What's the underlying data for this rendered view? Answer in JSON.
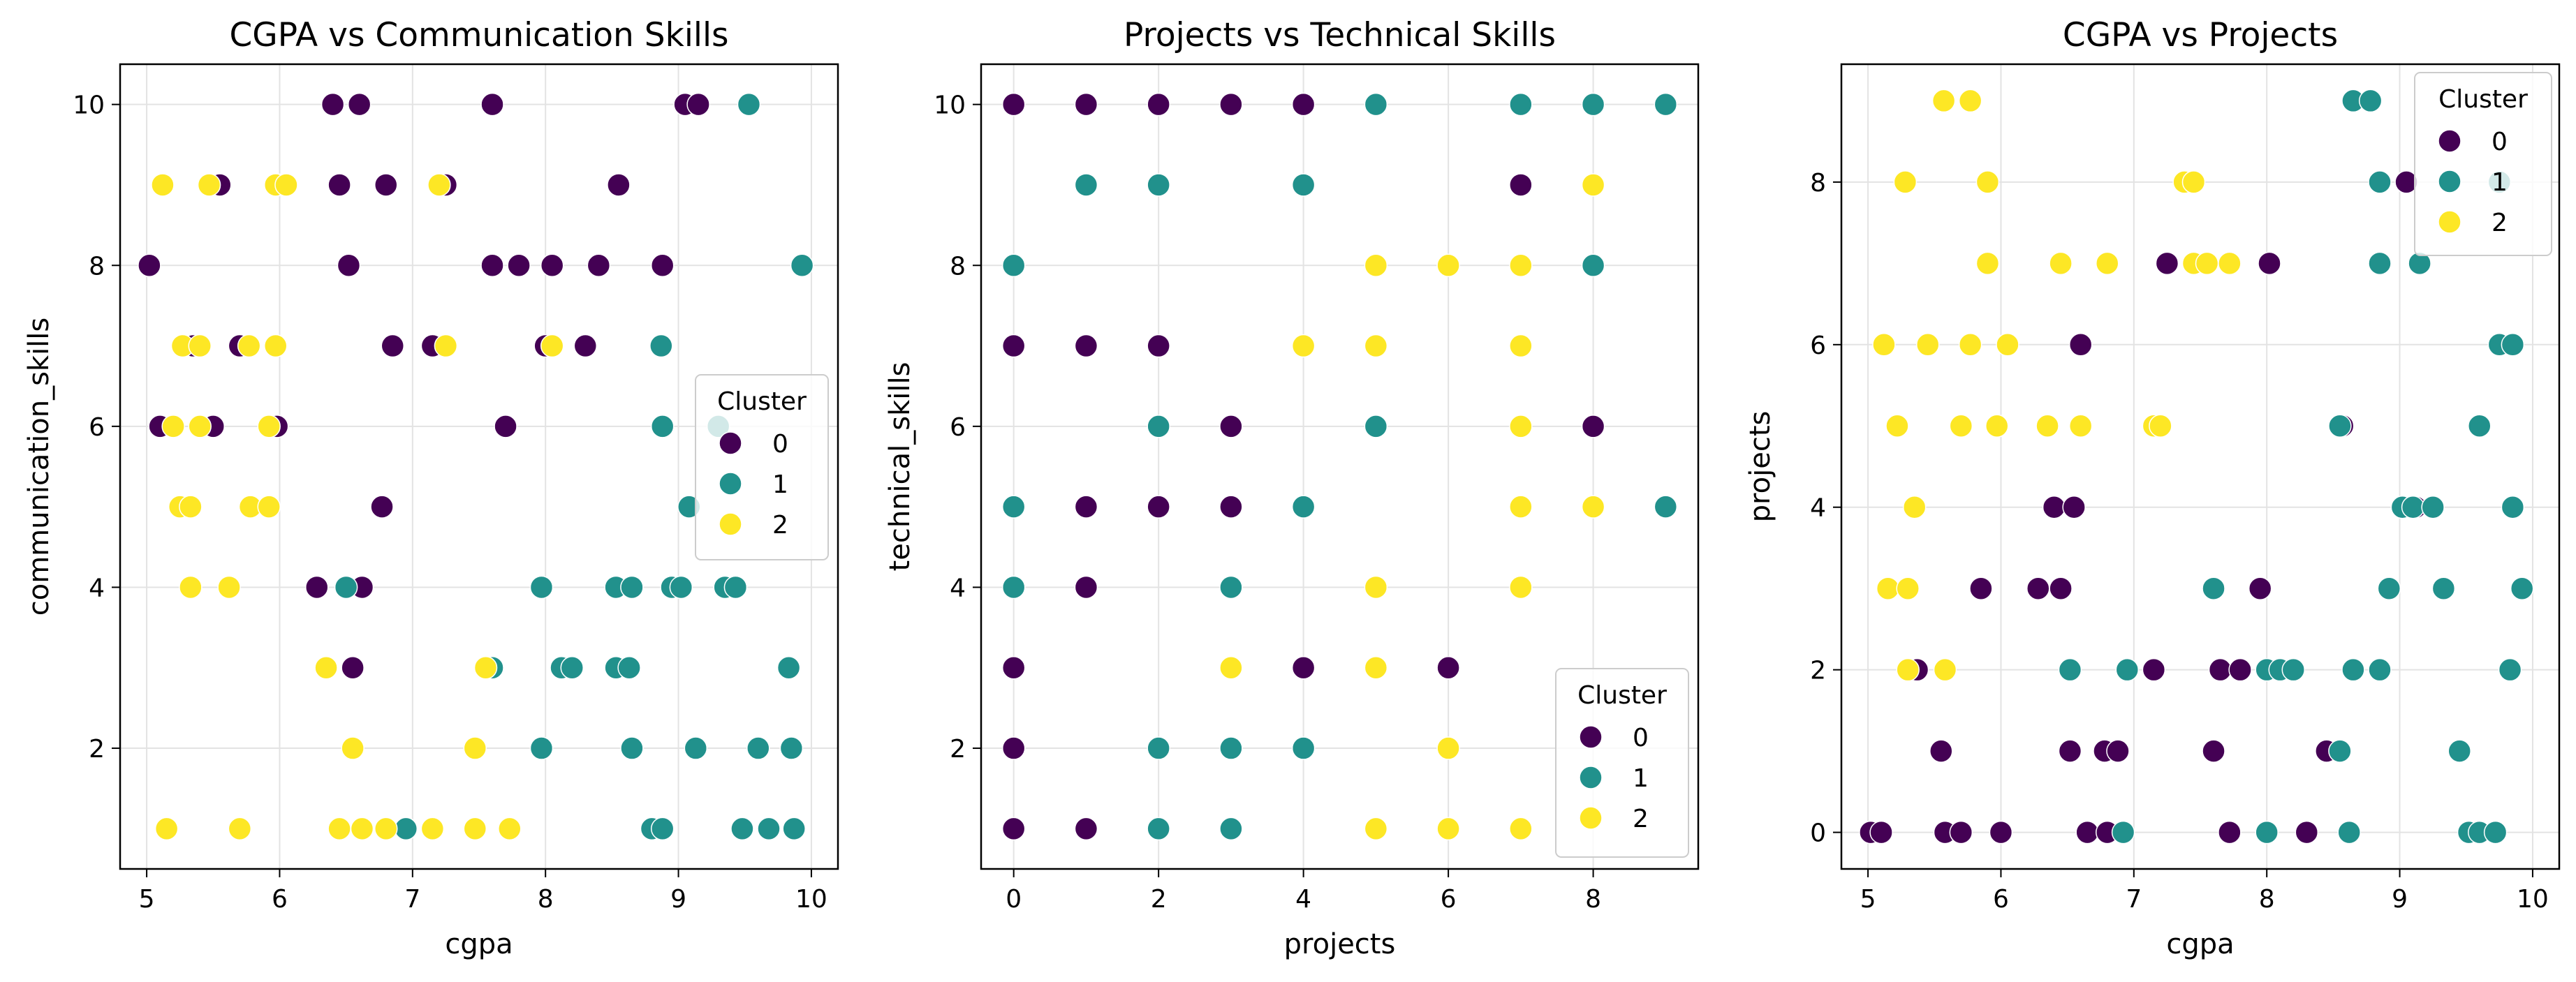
{
  "colors": {
    "cluster_0": "#440154",
    "cluster_1": "#21918c",
    "cluster_2": "#fde725",
    "grid": "#e3e3e3"
  },
  "chart_data": [
    {
      "type": "scatter",
      "title": "CGPA vs Communication Skills",
      "xlabel": "cgpa",
      "ylabel": "communication_skills",
      "xlim": [
        4.8,
        10.2
      ],
      "ylim": [
        0.5,
        10.5
      ],
      "xticks": [
        5,
        6,
        7,
        8,
        9,
        10
      ],
      "yticks": [
        2,
        4,
        6,
        8,
        10
      ],
      "grid": true,
      "legend": {
        "title": "Cluster",
        "placement": "center-right",
        "entries": [
          "0",
          "1",
          "2"
        ]
      },
      "series": [
        {
          "name": "0",
          "color": "#440154",
          "points": [
            [
              5.02,
              8
            ],
            [
              5.1,
              6
            ],
            [
              5.35,
              7
            ],
            [
              5.5,
              6
            ],
            [
              5.55,
              9
            ],
            [
              5.7,
              7
            ],
            [
              5.98,
              6
            ],
            [
              5.98,
              9
            ],
            [
              6.4,
              10
            ],
            [
              6.45,
              9
            ],
            [
              6.52,
              8
            ],
            [
              6.6,
              10
            ],
            [
              6.8,
              9
            ],
            [
              6.85,
              7
            ],
            [
              7.15,
              7
            ],
            [
              7.25,
              9
            ],
            [
              7.6,
              10
            ],
            [
              7.6,
              8
            ],
            [
              7.7,
              6
            ],
            [
              7.8,
              8
            ],
            [
              8.0,
              7
            ],
            [
              8.05,
              8
            ],
            [
              8.3,
              7
            ],
            [
              8.4,
              8
            ],
            [
              8.55,
              9
            ],
            [
              8.88,
              8
            ],
            [
              9.05,
              10
            ],
            [
              9.15,
              10
            ],
            [
              6.28,
              4
            ],
            [
              6.62,
              4
            ],
            [
              6.55,
              3
            ],
            [
              6.77,
              5
            ]
          ]
        },
        {
          "name": "1",
          "color": "#21918c",
          "points": [
            [
              9.53,
              10
            ],
            [
              9.93,
              8
            ],
            [
              8.87,
              7
            ],
            [
              8.88,
              6
            ],
            [
              9.3,
              6
            ],
            [
              9.08,
              5
            ],
            [
              6.5,
              4
            ],
            [
              7.97,
              4
            ],
            [
              8.53,
              4
            ],
            [
              8.65,
              4
            ],
            [
              8.95,
              4
            ],
            [
              9.02,
              4
            ],
            [
              9.35,
              4
            ],
            [
              9.43,
              4
            ],
            [
              7.6,
              3
            ],
            [
              8.12,
              3
            ],
            [
              8.2,
              3
            ],
            [
              8.53,
              3
            ],
            [
              8.63,
              3
            ],
            [
              9.83,
              3
            ],
            [
              6.95,
              1
            ],
            [
              7.97,
              2
            ],
            [
              8.65,
              2
            ],
            [
              9.13,
              2
            ],
            [
              9.6,
              2
            ],
            [
              9.85,
              2
            ],
            [
              8.8,
              1
            ],
            [
              8.88,
              1
            ],
            [
              9.48,
              1
            ],
            [
              9.68,
              1
            ],
            [
              9.87,
              1
            ]
          ]
        },
        {
          "name": "2",
          "color": "#fde725",
          "points": [
            [
              5.12,
              9
            ],
            [
              5.47,
              9
            ],
            [
              5.97,
              9
            ],
            [
              6.05,
              9
            ],
            [
              7.2,
              9
            ],
            [
              5.27,
              7
            ],
            [
              5.4,
              7
            ],
            [
              5.77,
              7
            ],
            [
              5.97,
              7
            ],
            [
              7.25,
              7
            ],
            [
              8.05,
              7
            ],
            [
              5.2,
              6
            ],
            [
              5.4,
              6
            ],
            [
              5.92,
              6
            ],
            [
              5.25,
              5
            ],
            [
              5.33,
              5
            ],
            [
              5.78,
              5
            ],
            [
              5.92,
              5
            ],
            [
              5.33,
              4
            ],
            [
              5.62,
              4
            ],
            [
              6.35,
              3
            ],
            [
              7.55,
              3
            ],
            [
              6.55,
              2
            ],
            [
              7.47,
              2
            ],
            [
              5.15,
              1
            ],
            [
              5.7,
              1
            ],
            [
              6.45,
              1
            ],
            [
              6.62,
              1
            ],
            [
              6.8,
              1
            ],
            [
              7.15,
              1
            ],
            [
              7.47,
              1
            ],
            [
              7.73,
              1
            ]
          ]
        }
      ]
    },
    {
      "type": "scatter",
      "title": "Projects vs Technical Skills",
      "xlabel": "projects",
      "ylabel": "technical_skills",
      "xlim": [
        -0.45,
        9.45
      ],
      "ylim": [
        0.5,
        10.5
      ],
      "xticks": [
        0,
        2,
        4,
        6,
        8
      ],
      "yticks": [
        2,
        4,
        6,
        8,
        10
      ],
      "grid": true,
      "legend": {
        "title": "Cluster",
        "placement": "lower-right",
        "entries": [
          "0",
          "1",
          "2"
        ]
      },
      "series": [
        {
          "name": "0",
          "color": "#440154",
          "points": [
            [
              0,
              10
            ],
            [
              1,
              10
            ],
            [
              2,
              10
            ],
            [
              3,
              10
            ],
            [
              4,
              10
            ],
            [
              7,
              9
            ],
            [
              0,
              7
            ],
            [
              1,
              7
            ],
            [
              2,
              7
            ],
            [
              3,
              6
            ],
            [
              8,
              6
            ],
            [
              1,
              5
            ],
            [
              2,
              5
            ],
            [
              3,
              5
            ],
            [
              1,
              4
            ],
            [
              0,
              3
            ],
            [
              4,
              3
            ],
            [
              6,
              3
            ],
            [
              0,
              2
            ],
            [
              0,
              1
            ],
            [
              1,
              1
            ]
          ]
        },
        {
          "name": "1",
          "color": "#21918c",
          "points": [
            [
              5,
              10
            ],
            [
              7,
              10
            ],
            [
              8,
              10
            ],
            [
              9,
              10
            ],
            [
              1,
              9
            ],
            [
              2,
              9
            ],
            [
              4,
              9
            ],
            [
              0,
              8
            ],
            [
              8,
              8
            ],
            [
              2,
              6
            ],
            [
              5,
              6
            ],
            [
              0,
              5
            ],
            [
              4,
              5
            ],
            [
              9,
              5
            ],
            [
              0,
              4
            ],
            [
              3,
              4
            ],
            [
              2,
              2
            ],
            [
              3,
              2
            ],
            [
              4,
              2
            ],
            [
              2,
              1
            ],
            [
              3,
              1
            ]
          ]
        },
        {
          "name": "2",
          "color": "#fde725",
          "points": [
            [
              8,
              9
            ],
            [
              5,
              8
            ],
            [
              6,
              8
            ],
            [
              7,
              8
            ],
            [
              4,
              7
            ],
            [
              5,
              7
            ],
            [
              7,
              7
            ],
            [
              7,
              6
            ],
            [
              7,
              5
            ],
            [
              8,
              5
            ],
            [
              5,
              4
            ],
            [
              7,
              4
            ],
            [
              3,
              3
            ],
            [
              5,
              3
            ],
            [
              6,
              2
            ],
            [
              5,
              1
            ],
            [
              6,
              1
            ],
            [
              7,
              1
            ]
          ]
        }
      ]
    },
    {
      "type": "scatter",
      "title": "CGPA vs Projects",
      "xlabel": "cgpa",
      "ylabel": "projects",
      "xlim": [
        4.8,
        10.2
      ],
      "ylim": [
        -0.45,
        9.45
      ],
      "xticks": [
        5,
        6,
        7,
        8,
        9,
        10
      ],
      "yticks": [
        0,
        2,
        4,
        6,
        8
      ],
      "grid": true,
      "legend": {
        "title": "Cluster",
        "placement": "top-right",
        "entries": [
          "0",
          "1",
          "2"
        ]
      },
      "series": [
        {
          "name": "0",
          "color": "#440154",
          "points": [
            [
              5.02,
              0
            ],
            [
              5.1,
              0
            ],
            [
              5.37,
              2
            ],
            [
              5.55,
              1
            ],
            [
              5.58,
              0
            ],
            [
              5.7,
              0
            ],
            [
              5.85,
              3
            ],
            [
              6.0,
              0
            ],
            [
              6.28,
              3
            ],
            [
              6.4,
              4
            ],
            [
              6.45,
              3
            ],
            [
              6.55,
              4
            ],
            [
              6.52,
              1
            ],
            [
              6.6,
              6
            ],
            [
              6.65,
              0
            ],
            [
              6.78,
              1
            ],
            [
              6.8,
              0
            ],
            [
              6.88,
              1
            ],
            [
              7.15,
              2
            ],
            [
              7.25,
              7
            ],
            [
              7.6,
              1
            ],
            [
              7.65,
              2
            ],
            [
              7.72,
              0
            ],
            [
              7.8,
              2
            ],
            [
              7.95,
              3
            ],
            [
              8.02,
              7
            ],
            [
              8.3,
              0
            ],
            [
              8.45,
              1
            ],
            [
              8.57,
              5
            ],
            [
              9.05,
              8
            ],
            [
              9.12,
              4
            ]
          ]
        },
        {
          "name": "1",
          "color": "#21918c",
          "points": [
            [
              8.65,
              9
            ],
            [
              8.78,
              9
            ],
            [
              8.85,
              8
            ],
            [
              8.85,
              7
            ],
            [
              9.15,
              7
            ],
            [
              9.75,
              8
            ],
            [
              9.75,
              6
            ],
            [
              9.85,
              6
            ],
            [
              9.6,
              5
            ],
            [
              8.55,
              5
            ],
            [
              9.02,
              4
            ],
            [
              9.1,
              4
            ],
            [
              9.25,
              4
            ],
            [
              9.85,
              4
            ],
            [
              7.6,
              3
            ],
            [
              8.92,
              3
            ],
            [
              9.33,
              3
            ],
            [
              9.92,
              3
            ],
            [
              6.52,
              2
            ],
            [
              6.95,
              2
            ],
            [
              8.0,
              2
            ],
            [
              8.1,
              2
            ],
            [
              8.2,
              2
            ],
            [
              8.65,
              2
            ],
            [
              8.85,
              2
            ],
            [
              9.83,
              2
            ],
            [
              8.55,
              1
            ],
            [
              9.45,
              1
            ],
            [
              6.92,
              0
            ],
            [
              8.0,
              0
            ],
            [
              8.62,
              0
            ],
            [
              9.52,
              0
            ],
            [
              9.6,
              0
            ],
            [
              9.72,
              0
            ]
          ]
        },
        {
          "name": "2",
          "color": "#fde725",
          "points": [
            [
              5.57,
              9
            ],
            [
              5.77,
              9
            ],
            [
              5.28,
              8
            ],
            [
              5.9,
              8
            ],
            [
              7.38,
              8
            ],
            [
              7.45,
              8
            ],
            [
              5.9,
              7
            ],
            [
              6.45,
              7
            ],
            [
              6.8,
              7
            ],
            [
              7.45,
              7
            ],
            [
              7.55,
              7
            ],
            [
              7.72,
              7
            ],
            [
              5.12,
              6
            ],
            [
              5.45,
              6
            ],
            [
              5.77,
              6
            ],
            [
              6.05,
              6
            ],
            [
              5.22,
              5
            ],
            [
              5.7,
              5
            ],
            [
              5.97,
              5
            ],
            [
              6.35,
              5
            ],
            [
              6.6,
              5
            ],
            [
              7.15,
              5
            ],
            [
              7.2,
              5
            ],
            [
              5.35,
              4
            ],
            [
              5.15,
              3
            ],
            [
              5.3,
              3
            ],
            [
              5.3,
              2
            ],
            [
              5.58,
              2
            ]
          ]
        }
      ]
    }
  ]
}
